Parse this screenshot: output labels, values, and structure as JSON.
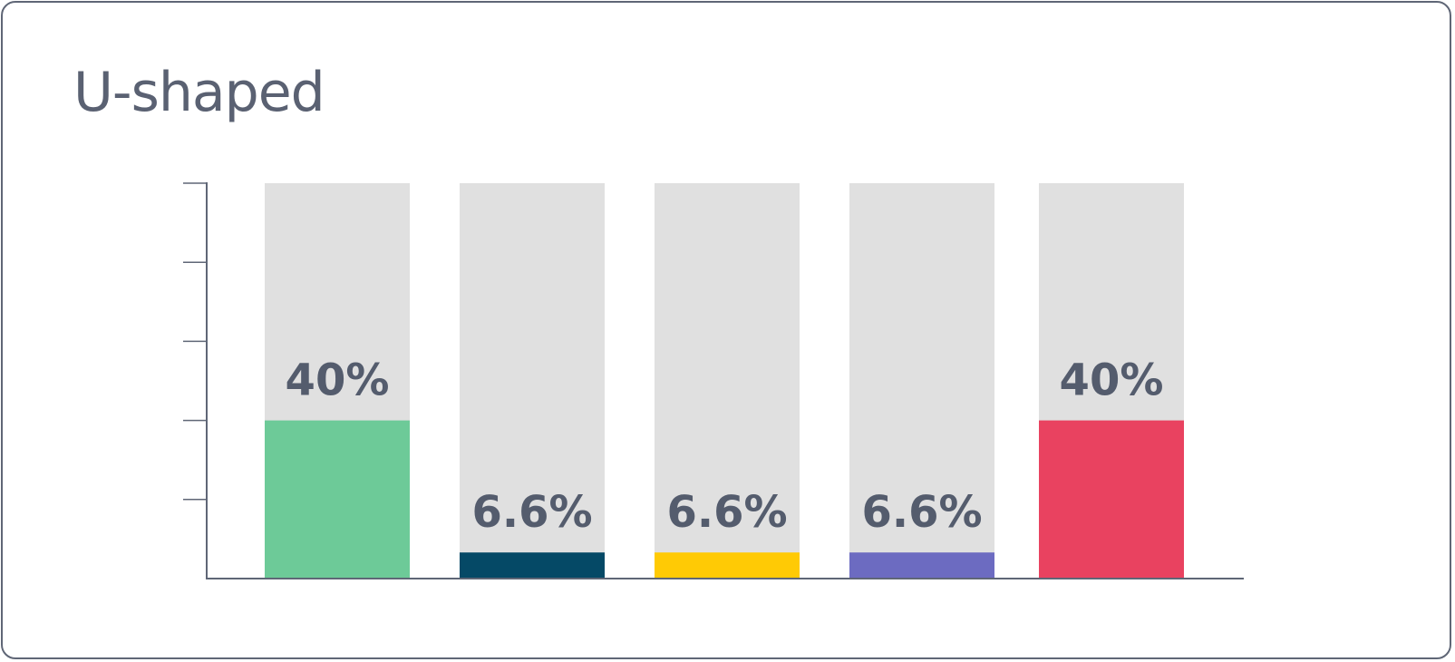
{
  "chart_data": {
    "type": "bar",
    "title": "U-shaped",
    "categories": [
      "",
      "",
      "",
      "",
      ""
    ],
    "values": [
      40,
      6.6,
      6.6,
      6.6,
      40
    ],
    "data_labels": [
      "40%",
      "6.6%",
      "6.6%",
      "6.6%",
      "40%"
    ],
    "colors": [
      "#6dca98",
      "#054966",
      "#ffca05",
      "#6c6bc1",
      "#e94260"
    ],
    "background_bar_color": "#e0e0e0",
    "axis_color": "#5f6676",
    "ylim": [
      0,
      100
    ],
    "yticks": [
      0,
      20,
      40,
      60,
      80,
      100
    ],
    "grid": false,
    "legend": "none",
    "xlabel": "",
    "ylabel": ""
  }
}
